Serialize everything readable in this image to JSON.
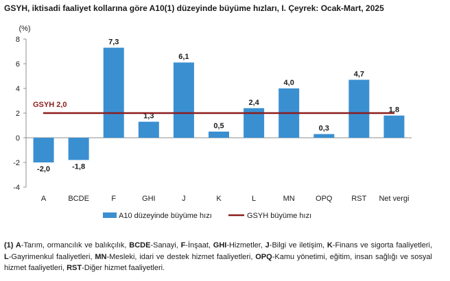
{
  "chart_data": {
    "type": "bar",
    "title": "GSYH, iktisadi faaliyet kollarına göre A10(1) düzeyinde büyüme hızları, I. Çeyrek: Ocak-Mart, 2025",
    "ylabel": "(%)",
    "xlabel": "",
    "ylim": [
      -4,
      8
    ],
    "yticks": [
      -4,
      -2,
      0,
      2,
      4,
      6,
      8
    ],
    "categories": [
      "A",
      "BCDE",
      "F",
      "GHI",
      "J",
      "K",
      "L",
      "MN",
      "OPQ",
      "RST",
      "Net vergi"
    ],
    "series": [
      {
        "name": "A10 düzeyinde büyüme hızı",
        "values": [
          -2.0,
          -1.8,
          7.3,
          1.3,
          6.1,
          0.5,
          2.4,
          4.0,
          0.3,
          4.7,
          1.8
        ],
        "labels": [
          "-2,0",
          "-1,8",
          "7,3",
          "1,3",
          "6,1",
          "0,5",
          "2,4",
          "4,0",
          "0,3",
          "4,7",
          "1,8"
        ],
        "color": "#3a8fd1"
      }
    ],
    "reference_line": {
      "name": "GSYH büyüme hızı",
      "value": 2.0,
      "label": "GSYH 2,0",
      "color": "#8b1c1c"
    },
    "legend_position": "bottom",
    "grid": false
  },
  "footnote": [
    {
      "t": "(1) ",
      "b": true
    },
    {
      "t": "A",
      "b": true
    },
    {
      "t": "-Tarım, ormancılık ve balıkçılık, "
    },
    {
      "t": "BCDE",
      "b": true
    },
    {
      "t": "-Sanayi, "
    },
    {
      "t": "F",
      "b": true
    },
    {
      "t": "-İnşaat, "
    },
    {
      "t": "GHI",
      "b": true
    },
    {
      "t": "-Hizmetler, "
    },
    {
      "t": "J",
      "b": true
    },
    {
      "t": "-Bilgi ve iletişim, "
    },
    {
      "t": "K",
      "b": true
    },
    {
      "t": "-Finans ve sigorta faaliyetleri, "
    },
    {
      "t": "L",
      "b": true
    },
    {
      "t": "-Gayrimenkul faaliyetleri, "
    },
    {
      "t": "MN",
      "b": true
    },
    {
      "t": "-Mesleki, idari ve destek hizmet faaliyetleri, "
    },
    {
      "t": "OPQ",
      "b": true
    },
    {
      "t": "-Kamu yönetimi, eğitim, insan sağlığı ve sosyal hizmet faaliyetleri, "
    },
    {
      "t": "RST",
      "b": true
    },
    {
      "t": "-Diğer hizmet faaliyetleri."
    }
  ]
}
